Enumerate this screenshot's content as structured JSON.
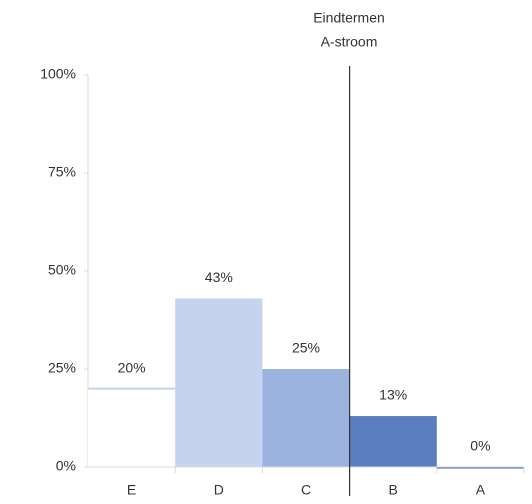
{
  "chart_data": {
    "type": "bar",
    "annotation": [
      "Eindtermen",
      "A-stroom"
    ],
    "categories": [
      "E",
      "D",
      "C",
      "B",
      "A"
    ],
    "values": [
      20,
      43,
      25,
      13,
      0
    ],
    "value_labels": [
      "20%",
      "43%",
      "25%",
      "13%",
      "0%"
    ],
    "colors": [
      "#ffffff",
      "#c5d3ee",
      "#9cb3df",
      "#5b7ec1",
      "#3d63b3"
    ],
    "ylim": [
      0,
      100
    ],
    "yticks": [
      {
        "value": 0,
        "label": "0%"
      },
      {
        "value": 25,
        "label": "25%"
      },
      {
        "value": 50,
        "label": "50%"
      },
      {
        "value": 75,
        "label": "75%"
      },
      {
        "value": 100,
        "label": "100%"
      }
    ]
  }
}
